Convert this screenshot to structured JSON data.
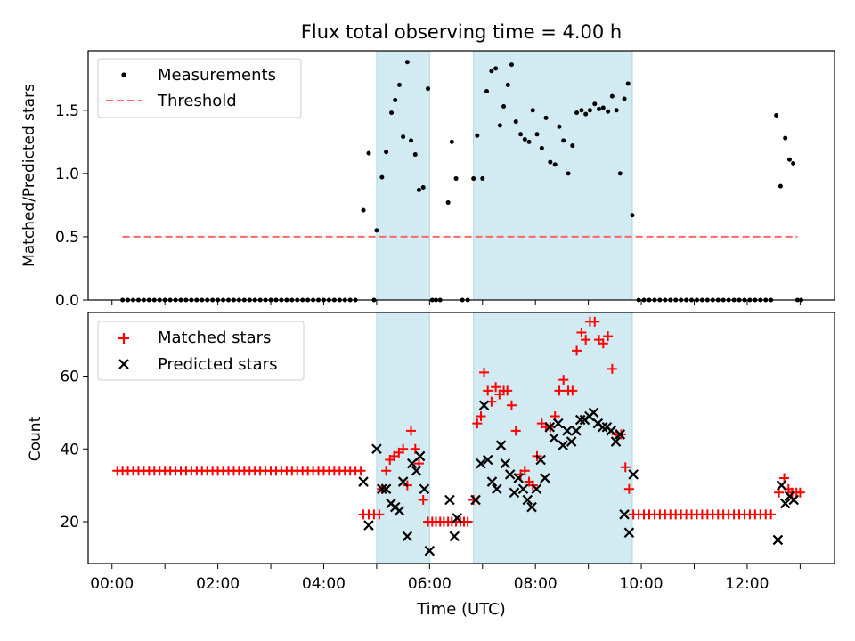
{
  "chart_data": {
    "title": "Flux total observing time = 4.00 h",
    "xlabel": "Time (UTC)",
    "x_unit": "hours UTC",
    "xlim": [
      -0.45,
      13.65
    ],
    "x_ticks": [
      {
        "value": 0,
        "label": "00:00"
      },
      {
        "value": 1,
        "label": ""
      },
      {
        "value": 2,
        "label": "02:00"
      },
      {
        "value": 3,
        "label": ""
      },
      {
        "value": 4,
        "label": "04:00"
      },
      {
        "value": 5,
        "label": ""
      },
      {
        "value": 6,
        "label": "06:00"
      },
      {
        "value": 7,
        "label": ""
      },
      {
        "value": 8,
        "label": "08:00"
      },
      {
        "value": 9,
        "label": ""
      },
      {
        "value": 10,
        "label": "10:00"
      },
      {
        "value": 11,
        "label": ""
      },
      {
        "value": 12,
        "label": "12:00"
      },
      {
        "value": 13,
        "label": ""
      }
    ],
    "observing_windows": [
      [
        5.0,
        6.0
      ],
      [
        6.83,
        9.83
      ]
    ],
    "colors": {
      "window": "#add8e6",
      "measurement": "#000000",
      "threshold": "#ff6666",
      "matched": "#ff0000",
      "predicted": "#000000"
    },
    "top": {
      "type": "scatter",
      "ylabel": "Matched/Predicted stars",
      "ylim": [
        0,
        1.97
      ],
      "yticks": [
        0.0,
        0.5,
        1.0,
        1.5
      ],
      "ytick_labels": [
        "0.0",
        "0.5",
        "1.0",
        "1.5"
      ],
      "legend": [
        "Measurements",
        "Threshold"
      ],
      "legend_position": "top-left",
      "threshold": {
        "value": 0.5,
        "x_range": [
          0.2,
          12.95
        ]
      },
      "measurements": [
        [
          0.2,
          0
        ],
        [
          0.3,
          0
        ],
        [
          0.4,
          0
        ],
        [
          0.5,
          0
        ],
        [
          0.6,
          0
        ],
        [
          0.7,
          0
        ],
        [
          0.8,
          0
        ],
        [
          0.9,
          0
        ],
        [
          1.0,
          0
        ],
        [
          1.1,
          0
        ],
        [
          1.2,
          0
        ],
        [
          1.3,
          0
        ],
        [
          1.4,
          0
        ],
        [
          1.5,
          0
        ],
        [
          1.6,
          0
        ],
        [
          1.7,
          0
        ],
        [
          1.8,
          0
        ],
        [
          1.9,
          0
        ],
        [
          2.0,
          0
        ],
        [
          2.1,
          0
        ],
        [
          2.2,
          0
        ],
        [
          2.3,
          0
        ],
        [
          2.4,
          0
        ],
        [
          2.5,
          0
        ],
        [
          2.6,
          0
        ],
        [
          2.7,
          0
        ],
        [
          2.8,
          0
        ],
        [
          2.9,
          0
        ],
        [
          3.0,
          0
        ],
        [
          3.1,
          0
        ],
        [
          3.2,
          0
        ],
        [
          3.3,
          0
        ],
        [
          3.4,
          0
        ],
        [
          3.5,
          0
        ],
        [
          3.6,
          0
        ],
        [
          3.7,
          0
        ],
        [
          3.8,
          0
        ],
        [
          3.9,
          0
        ],
        [
          4.0,
          0
        ],
        [
          4.1,
          0
        ],
        [
          4.2,
          0
        ],
        [
          4.3,
          0
        ],
        [
          4.4,
          0
        ],
        [
          4.5,
          0
        ],
        [
          4.6,
          0
        ],
        [
          4.75,
          0.71
        ],
        [
          4.85,
          1.16
        ],
        [
          4.95,
          0.0
        ],
        [
          5.0,
          0.55
        ],
        [
          5.1,
          0.97
        ],
        [
          5.18,
          1.17
        ],
        [
          5.28,
          1.48
        ],
        [
          5.35,
          1.58
        ],
        [
          5.43,
          1.7
        ],
        [
          5.5,
          1.29
        ],
        [
          5.58,
          1.88
        ],
        [
          5.65,
          1.26
        ],
        [
          5.73,
          1.15
        ],
        [
          5.8,
          0.87
        ],
        [
          5.88,
          0.89
        ],
        [
          5.97,
          1.67
        ],
        [
          6.05,
          0
        ],
        [
          6.12,
          0
        ],
        [
          6.2,
          0
        ],
        [
          6.35,
          0.77
        ],
        [
          6.42,
          1.25
        ],
        [
          6.5,
          0.96
        ],
        [
          6.62,
          0
        ],
        [
          6.72,
          0
        ],
        [
          6.83,
          0.96
        ],
        [
          6.9,
          1.3
        ],
        [
          7.0,
          0.96
        ],
        [
          7.08,
          1.65
        ],
        [
          7.17,
          1.81
        ],
        [
          7.25,
          1.83
        ],
        [
          7.33,
          1.38
        ],
        [
          7.4,
          1.53
        ],
        [
          7.48,
          1.7
        ],
        [
          7.55,
          1.86
        ],
        [
          7.63,
          1.41
        ],
        [
          7.72,
          1.31
        ],
        [
          7.8,
          1.27
        ],
        [
          7.88,
          1.25
        ],
        [
          7.95,
          1.5
        ],
        [
          8.03,
          1.31
        ],
        [
          8.12,
          1.2
        ],
        [
          8.2,
          1.44
        ],
        [
          8.28,
          1.09
        ],
        [
          8.37,
          1.07
        ],
        [
          8.45,
          1.37
        ],
        [
          8.53,
          1.26
        ],
        [
          8.62,
          1.0
        ],
        [
          8.7,
          1.22
        ],
        [
          8.78,
          1.48
        ],
        [
          8.87,
          1.5
        ],
        [
          8.95,
          1.47
        ],
        [
          9.03,
          1.5
        ],
        [
          9.12,
          1.55
        ],
        [
          9.2,
          1.51
        ],
        [
          9.28,
          1.52
        ],
        [
          9.37,
          1.49
        ],
        [
          9.45,
          1.61
        ],
        [
          9.53,
          1.5
        ],
        [
          9.6,
          1.0
        ],
        [
          9.68,
          1.59
        ],
        [
          9.75,
          1.71
        ],
        [
          9.83,
          0.67
        ],
        [
          9.95,
          0
        ],
        [
          10.05,
          0
        ],
        [
          10.15,
          0
        ],
        [
          10.25,
          0
        ],
        [
          10.35,
          0
        ],
        [
          10.45,
          0
        ],
        [
          10.55,
          0
        ],
        [
          10.65,
          0
        ],
        [
          10.75,
          0
        ],
        [
          10.85,
          0
        ],
        [
          10.95,
          0
        ],
        [
          11.05,
          0
        ],
        [
          11.15,
          0
        ],
        [
          11.25,
          0
        ],
        [
          11.35,
          0
        ],
        [
          11.45,
          0
        ],
        [
          11.55,
          0
        ],
        [
          11.65,
          0
        ],
        [
          11.75,
          0
        ],
        [
          11.85,
          0
        ],
        [
          11.95,
          0
        ],
        [
          12.05,
          0
        ],
        [
          12.15,
          0
        ],
        [
          12.25,
          0
        ],
        [
          12.35,
          0
        ],
        [
          12.45,
          0
        ],
        [
          12.55,
          1.46
        ],
        [
          12.63,
          0.9
        ],
        [
          12.72,
          1.28
        ],
        [
          12.8,
          1.11
        ],
        [
          12.87,
          1.08
        ],
        [
          12.95,
          0
        ],
        [
          13.02,
          0
        ]
      ]
    },
    "bottom": {
      "type": "scatter",
      "ylabel": "Count",
      "ylim": [
        8.5,
        77.5
      ],
      "yticks": [
        20,
        40,
        60
      ],
      "ytick_labels": [
        "20",
        "40",
        "60"
      ],
      "legend": [
        "Matched stars",
        "Predicted stars"
      ],
      "legend_position": "top-left",
      "matched": [
        [
          0.1,
          34
        ],
        [
          0.2,
          34
        ],
        [
          0.3,
          34
        ],
        [
          0.4,
          34
        ],
        [
          0.5,
          34
        ],
        [
          0.6,
          34
        ],
        [
          0.7,
          34
        ],
        [
          0.8,
          34
        ],
        [
          0.9,
          34
        ],
        [
          1.0,
          34
        ],
        [
          1.1,
          34
        ],
        [
          1.2,
          34
        ],
        [
          1.3,
          34
        ],
        [
          1.4,
          34
        ],
        [
          1.5,
          34
        ],
        [
          1.6,
          34
        ],
        [
          1.7,
          34
        ],
        [
          1.8,
          34
        ],
        [
          1.9,
          34
        ],
        [
          2.0,
          34
        ],
        [
          2.1,
          34
        ],
        [
          2.2,
          34
        ],
        [
          2.3,
          34
        ],
        [
          2.4,
          34
        ],
        [
          2.5,
          34
        ],
        [
          2.6,
          34
        ],
        [
          2.7,
          34
        ],
        [
          2.8,
          34
        ],
        [
          2.9,
          34
        ],
        [
          3.0,
          34
        ],
        [
          3.1,
          34
        ],
        [
          3.2,
          34
        ],
        [
          3.3,
          34
        ],
        [
          3.4,
          34
        ],
        [
          3.5,
          34
        ],
        [
          3.6,
          34
        ],
        [
          3.7,
          34
        ],
        [
          3.8,
          34
        ],
        [
          3.9,
          34
        ],
        [
          4.0,
          34
        ],
        [
          4.1,
          34
        ],
        [
          4.2,
          34
        ],
        [
          4.3,
          34
        ],
        [
          4.4,
          34
        ],
        [
          4.5,
          34
        ],
        [
          4.6,
          34
        ],
        [
          4.7,
          34
        ],
        [
          4.75,
          22
        ],
        [
          4.85,
          22
        ],
        [
          4.95,
          22
        ],
        [
          5.05,
          22
        ],
        [
          5.1,
          29
        ],
        [
          5.18,
          34
        ],
        [
          5.25,
          37
        ],
        [
          5.33,
          38
        ],
        [
          5.42,
          39
        ],
        [
          5.5,
          40
        ],
        [
          5.58,
          30
        ],
        [
          5.65,
          45
        ],
        [
          5.73,
          40
        ],
        [
          5.8,
          36
        ],
        [
          5.88,
          26
        ],
        [
          5.97,
          20
        ],
        [
          6.05,
          20
        ],
        [
          6.12,
          20
        ],
        [
          6.2,
          20
        ],
        [
          6.27,
          20
        ],
        [
          6.35,
          20
        ],
        [
          6.42,
          20
        ],
        [
          6.5,
          20
        ],
        [
          6.58,
          20
        ],
        [
          6.65,
          20
        ],
        [
          6.72,
          20
        ],
        [
          6.83,
          26
        ],
        [
          6.9,
          47
        ],
        [
          6.97,
          49
        ],
        [
          7.03,
          61
        ],
        [
          7.1,
          56
        ],
        [
          7.17,
          53
        ],
        [
          7.25,
          57
        ],
        [
          7.32,
          55
        ],
        [
          7.4,
          56
        ],
        [
          7.47,
          56
        ],
        [
          7.55,
          52
        ],
        [
          7.63,
          45
        ],
        [
          7.72,
          33
        ],
        [
          7.8,
          34
        ],
        [
          7.88,
          31
        ],
        [
          7.95,
          30
        ],
        [
          8.03,
          38
        ],
        [
          8.12,
          47
        ],
        [
          8.2,
          46
        ],
        [
          8.28,
          46
        ],
        [
          8.37,
          49
        ],
        [
          8.45,
          56
        ],
        [
          8.53,
          59
        ],
        [
          8.62,
          56
        ],
        [
          8.7,
          56
        ],
        [
          8.78,
          67
        ],
        [
          8.87,
          72
        ],
        [
          8.95,
          70
        ],
        [
          9.03,
          75
        ],
        [
          9.12,
          75
        ],
        [
          9.2,
          70
        ],
        [
          9.28,
          69
        ],
        [
          9.37,
          71
        ],
        [
          9.45,
          62
        ],
        [
          9.53,
          44
        ],
        [
          9.62,
          44
        ],
        [
          9.7,
          35
        ],
        [
          9.77,
          29
        ],
        [
          9.85,
          22
        ],
        [
          9.95,
          22
        ],
        [
          10.05,
          22
        ],
        [
          10.15,
          22
        ],
        [
          10.25,
          22
        ],
        [
          10.35,
          22
        ],
        [
          10.45,
          22
        ],
        [
          10.55,
          22
        ],
        [
          10.65,
          22
        ],
        [
          10.75,
          22
        ],
        [
          10.85,
          22
        ],
        [
          10.95,
          22
        ],
        [
          11.05,
          22
        ],
        [
          11.15,
          22
        ],
        [
          11.25,
          22
        ],
        [
          11.35,
          22
        ],
        [
          11.45,
          22
        ],
        [
          11.55,
          22
        ],
        [
          11.65,
          22
        ],
        [
          11.75,
          22
        ],
        [
          11.85,
          22
        ],
        [
          11.95,
          22
        ],
        [
          12.05,
          22
        ],
        [
          12.15,
          22
        ],
        [
          12.25,
          22
        ],
        [
          12.35,
          22
        ],
        [
          12.45,
          22
        ],
        [
          12.6,
          28
        ],
        [
          12.7,
          32
        ],
        [
          12.78,
          29
        ],
        [
          12.85,
          28
        ],
        [
          12.93,
          28
        ],
        [
          13.0,
          28
        ]
      ],
      "predicted": [
        [
          4.75,
          31
        ],
        [
          4.85,
          19
        ],
        [
          5.0,
          40
        ],
        [
          5.1,
          29
        ],
        [
          5.18,
          29
        ],
        [
          5.27,
          25
        ],
        [
          5.35,
          24
        ],
        [
          5.43,
          23
        ],
        [
          5.5,
          31
        ],
        [
          5.58,
          16
        ],
        [
          5.67,
          36
        ],
        [
          5.75,
          34
        ],
        [
          5.82,
          38
        ],
        [
          5.9,
          29
        ],
        [
          6.0,
          12
        ],
        [
          6.38,
          26
        ],
        [
          6.47,
          16
        ],
        [
          6.52,
          21
        ],
        [
          6.87,
          26
        ],
        [
          6.97,
          36
        ],
        [
          7.03,
          52
        ],
        [
          7.1,
          37
        ],
        [
          7.18,
          31
        ],
        [
          7.27,
          29
        ],
        [
          7.35,
          41
        ],
        [
          7.43,
          36
        ],
        [
          7.52,
          33
        ],
        [
          7.6,
          28
        ],
        [
          7.68,
          32
        ],
        [
          7.77,
          29
        ],
        [
          7.85,
          26
        ],
        [
          7.93,
          24
        ],
        [
          8.02,
          29
        ],
        [
          8.1,
          37
        ],
        [
          8.18,
          32
        ],
        [
          8.27,
          46
        ],
        [
          8.35,
          43
        ],
        [
          8.43,
          47
        ],
        [
          8.52,
          41
        ],
        [
          8.6,
          45
        ],
        [
          8.68,
          42
        ],
        [
          8.77,
          45
        ],
        [
          8.85,
          48
        ],
        [
          8.93,
          48
        ],
        [
          9.02,
          49
        ],
        [
          9.1,
          50
        ],
        [
          9.18,
          47
        ],
        [
          9.27,
          46
        ],
        [
          9.35,
          46
        ],
        [
          9.43,
          45
        ],
        [
          9.52,
          42
        ],
        [
          9.6,
          44
        ],
        [
          9.68,
          22
        ],
        [
          9.77,
          17
        ],
        [
          9.85,
          33
        ],
        [
          12.58,
          15
        ],
        [
          12.65,
          30
        ],
        [
          12.72,
          25
        ],
        [
          12.8,
          27
        ],
        [
          12.88,
          26
        ]
      ]
    }
  }
}
